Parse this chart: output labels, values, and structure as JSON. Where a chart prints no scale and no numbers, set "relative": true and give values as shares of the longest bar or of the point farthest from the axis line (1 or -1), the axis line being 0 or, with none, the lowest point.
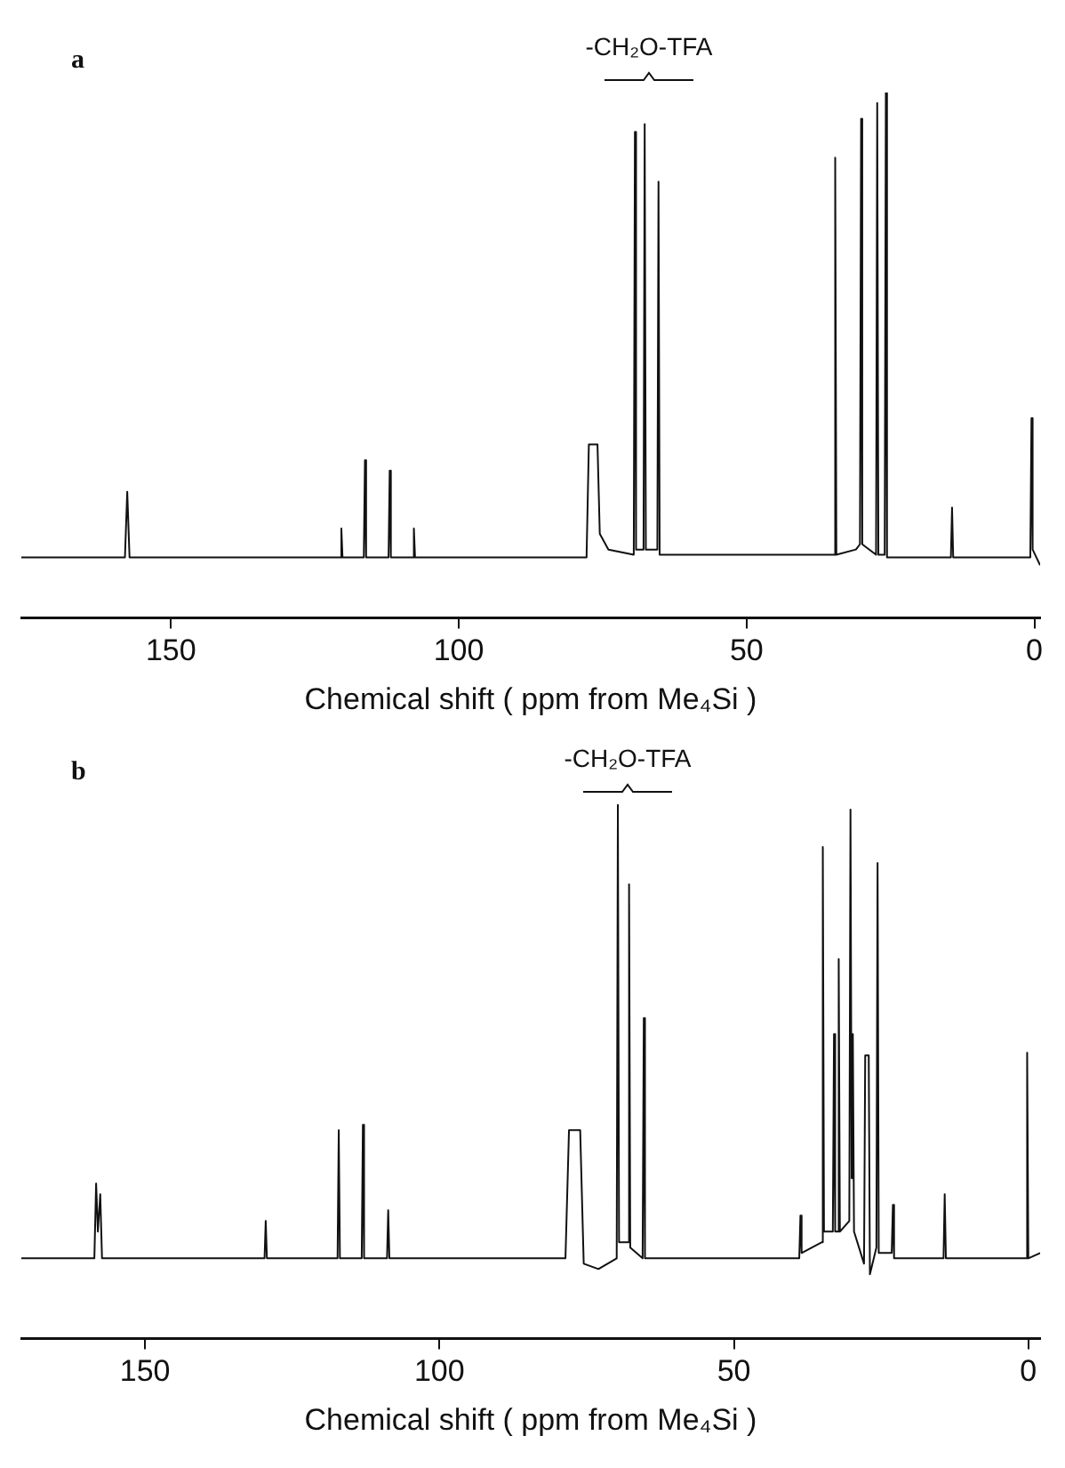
{
  "chart_data": [
    {
      "type": "line",
      "relative": true,
      "xlabel": "Chemical shift ( ppm from Me₄Si )",
      "xlim": [
        176,
        -1
      ],
      "xticks": [
        150,
        100,
        50,
        0
      ],
      "grid": false,
      "legend": false,
      "marker": "none",
      "line_style": "solid",
      "tick_labels": "x",
      "annotations": [
        "a",
        "-CH₂O-TFA"
      ],
      "series": [
        {
          "color": "#111111",
          "x": [
            176,
            158,
            157.6,
            157.2,
            120.6,
            120.4,
            120.2,
            116.5,
            116.3,
            116.1,
            112.2,
            112,
            111.8,
            108,
            107.8,
            107.6,
            77.8,
            77.4,
            75.9,
            75.5,
            74,
            69.6,
            69.4,
            69.2,
            67.9,
            67.7,
            67.5,
            65.5,
            65.3,
            65.1,
            34.8,
            34.6,
            34.4,
            31,
            30.3,
            30.1,
            29.9,
            27.5,
            27.3,
            27.1,
            26,
            25.8,
            25.6,
            14.5,
            14.3,
            14.1,
            0.7,
            0.5,
            0.3,
            -1
          ],
          "values": [
            0.115,
            0.115,
            0.24,
            0.115,
            0.115,
            0.17,
            0.115,
            0.115,
            0.3,
            0.115,
            0.115,
            0.28,
            0.115,
            0.115,
            0.17,
            0.115,
            0.115,
            0.33,
            0.33,
            0.16,
            0.13,
            0.12,
            0.925,
            0.13,
            0.13,
            0.94,
            0.13,
            0.13,
            0.83,
            0.12,
            0.12,
            0.876,
            0.12,
            0.13,
            0.14,
            0.95,
            0.14,
            0.12,
            0.98,
            0.12,
            0.12,
            1,
            0.115,
            0.115,
            0.21,
            0.115,
            0.115,
            0.38,
            0.13,
            0.1
          ]
        }
      ]
    },
    {
      "type": "line",
      "relative": true,
      "xlabel": "Chemical shift ( ppm from Me₄Si )",
      "xlim": [
        171,
        -2
      ],
      "xticks": [
        150,
        100,
        50,
        0
      ],
      "grid": false,
      "legend": false,
      "marker": "none",
      "line_style": "solid",
      "tick_labels": "x",
      "annotations": [
        "b",
        "-CH₂O-TFA"
      ],
      "series": [
        {
          "color": "#111111",
          "x": [
            171,
            158.6,
            158.3,
            158,
            157.6,
            157.3,
            129.7,
            129.5,
            129.3,
            117.3,
            117.1,
            116.9,
            113.2,
            113,
            112.8,
            108.9,
            108.7,
            108.5,
            78.6,
            78,
            76.1,
            75.5,
            73,
            69.9,
            69.7,
            69.5,
            68,
            67.8,
            67.6,
            65.5,
            65.3,
            65.1,
            38.9,
            38.7,
            38.5,
            35.1,
            34.9,
            34.7,
            33.2,
            33,
            32.8,
            32.4,
            32.2,
            32,
            30.4,
            30.2,
            30,
            29.8,
            29.6,
            27.9,
            27.7,
            27.1,
            26.9,
            25.8,
            25.6,
            25.4,
            23.2,
            23,
            22.8,
            14.4,
            14.2,
            14,
            0.4,
            0.2,
            0,
            -2
          ],
          "values": [
            0.15,
            0.15,
            0.29,
            0.2,
            0.27,
            0.15,
            0.15,
            0.22,
            0.15,
            0.15,
            0.39,
            0.15,
            0.15,
            0.4,
            0.15,
            0.15,
            0.24,
            0.15,
            0.15,
            0.39,
            0.39,
            0.14,
            0.13,
            0.15,
            1,
            0.18,
            0.18,
            0.85,
            0.17,
            0.15,
            0.6,
            0.15,
            0.15,
            0.23,
            0.16,
            0.18,
            0.92,
            0.2,
            0.2,
            0.57,
            0.2,
            0.2,
            0.71,
            0.2,
            0.22,
            0.99,
            0.3,
            0.57,
            0.2,
            0.14,
            0.53,
            0.53,
            0.12,
            0.17,
            0.89,
            0.16,
            0.16,
            0.25,
            0.15,
            0.15,
            0.27,
            0.15,
            0.15,
            0.535,
            0.15,
            0.16
          ]
        }
      ]
    }
  ]
}
